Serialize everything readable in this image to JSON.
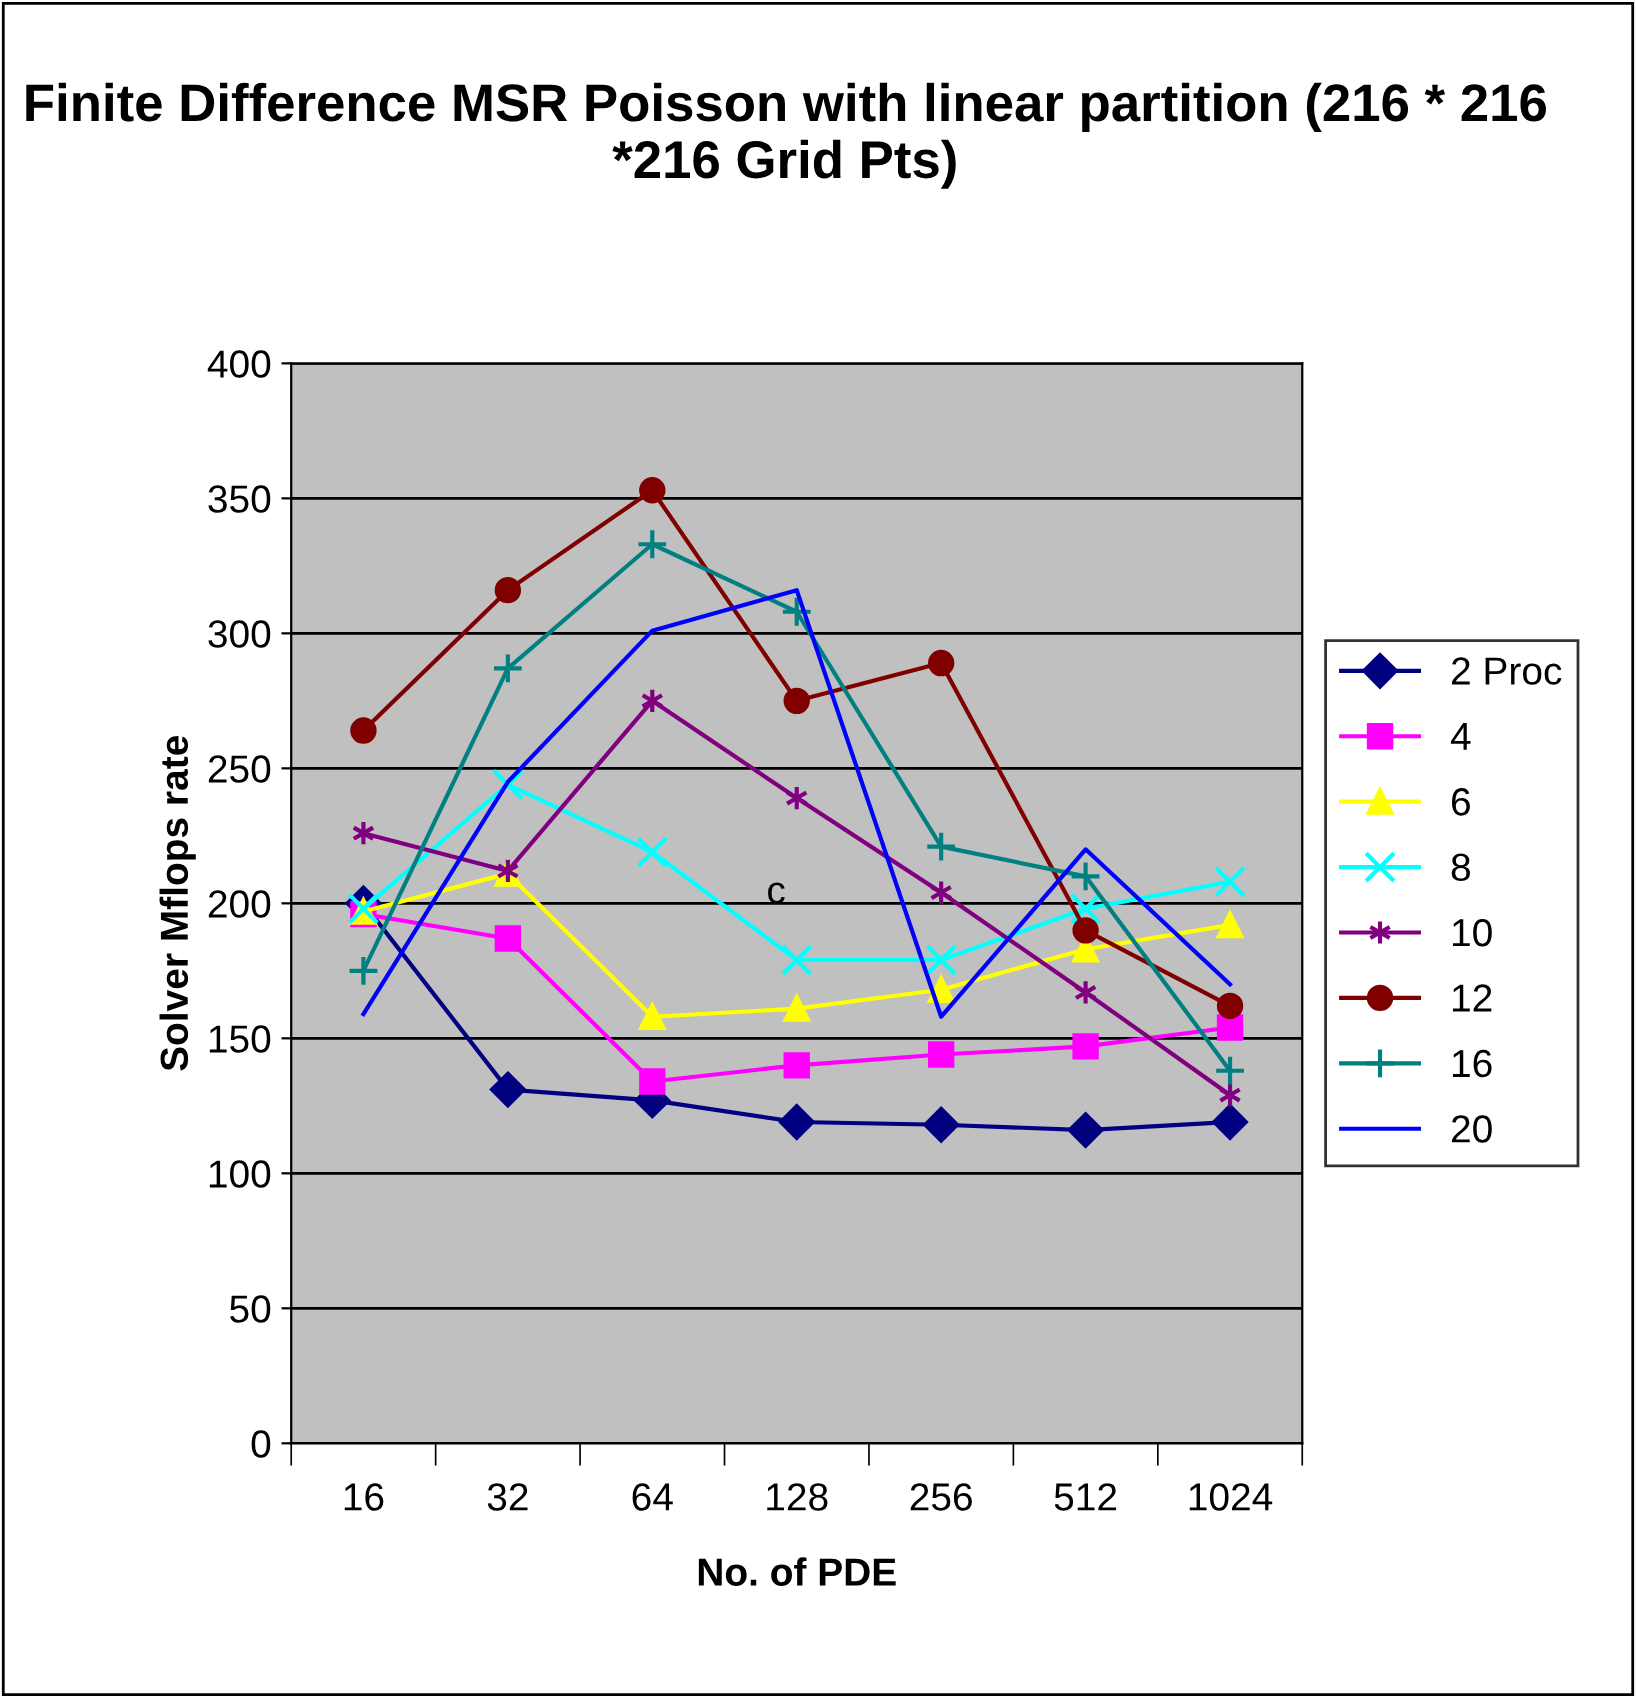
{
  "chart_data": {
    "type": "line",
    "title": "Finite Difference MSR Poisson with linear partition (216 * 216 *216 Grid Pts)",
    "xlabel": "No. of PDE",
    "ylabel": "Solver Mflops rate",
    "categories": [
      "16",
      "32",
      "64",
      "128",
      "256",
      "512",
      "1024"
    ],
    "series": [
      {
        "name": "2 Proc",
        "color": "#000080",
        "marker": "diamond",
        "values": [
          200,
          131,
          127,
          119,
          118,
          116,
          119
        ]
      },
      {
        "name": "4",
        "color": "#ff00ff",
        "marker": "square",
        "values": [
          196,
          187,
          134,
          140,
          144,
          147,
          154
        ]
      },
      {
        "name": "6",
        "color": "#ffff00",
        "marker": "triangle",
        "values": [
          197,
          211,
          158,
          161,
          168,
          183,
          192
        ]
      },
      {
        "name": "8",
        "color": "#00ffff",
        "marker": "cross",
        "values": [
          198,
          244,
          219,
          179,
          179,
          198,
          208
        ]
      },
      {
        "name": "10",
        "color": "#800080",
        "marker": "cross",
        "values": [
          226,
          212,
          275,
          239,
          204,
          167,
          129
        ]
      },
      {
        "name": "12",
        "color": "#800000",
        "marker": "circle",
        "values": [
          264,
          316,
          353,
          275,
          289,
          190,
          162
        ]
      },
      {
        "name": "16",
        "color": "#008080",
        "marker": "cross",
        "values": [
          175,
          287,
          333,
          308,
          221,
          210,
          138
        ]
      },
      {
        "name": "20",
        "color": "#0000ff",
        "marker": "none",
        "values": [
          159,
          245,
          301,
          316,
          158,
          220,
          170
        ]
      }
    ],
    "annotations": [
      "c"
    ],
    "ylim": [
      0,
      400
    ],
    "yticks": [
      0,
      50,
      100,
      150,
      200,
      250,
      300,
      350,
      400
    ],
    "grid": "y",
    "legend": "right",
    "line_style": "solid"
  }
}
